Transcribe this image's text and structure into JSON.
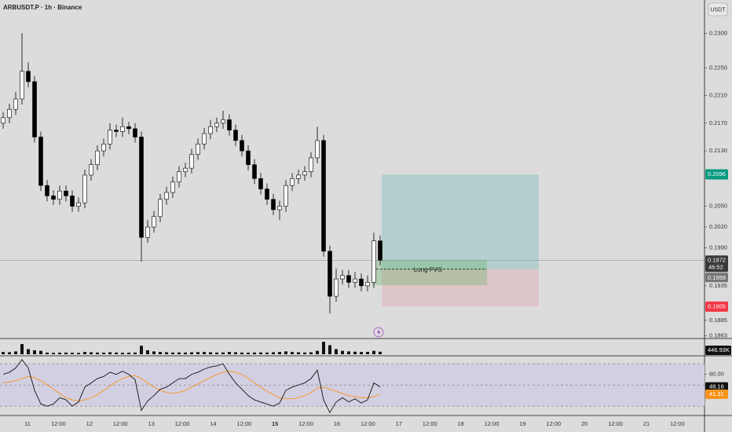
{
  "header": {
    "title": "ARBUSDT.P · 1h · Binance",
    "currency": "USDT"
  },
  "time_axis": {
    "labels": [
      "11",
      "12:00",
      "12",
      "12:00",
      "13",
      "12:00",
      "14",
      "12:00",
      "15",
      "12:00",
      "16",
      "12:00",
      "17",
      "12:00",
      "18",
      "12:00",
      "19",
      "12:00",
      "20",
      "12:00",
      "21",
      "12:00"
    ]
  },
  "chart_data": [
    {
      "type": "candlestick",
      "open": [
        0.217,
        0.2178,
        0.219,
        0.2205,
        0.2245,
        0.223,
        0.215,
        0.208,
        0.2065,
        0.206,
        0.2072,
        0.2065,
        0.205,
        0.2055,
        0.2095,
        0.211,
        0.213,
        0.214,
        0.216,
        0.2158,
        0.2165,
        0.2162,
        0.215,
        0.2005,
        0.202,
        0.2035,
        0.206,
        0.207,
        0.2085,
        0.21,
        0.2105,
        0.2125,
        0.214,
        0.2155,
        0.2165,
        0.217,
        0.2175,
        0.216,
        0.2145,
        0.213,
        0.211,
        0.209,
        0.2075,
        0.206,
        0.2045,
        0.205,
        0.208,
        0.209,
        0.2095,
        0.21,
        0.212,
        0.2145,
        0.1985,
        0.192,
        0.1945,
        0.195,
        0.194,
        0.1945,
        0.1935,
        0.194,
        0.2
      ],
      "high": [
        0.2186,
        0.2198,
        0.2215,
        0.23,
        0.2258,
        0.2238,
        0.2158,
        0.2088,
        0.2073,
        0.208,
        0.208,
        0.2073,
        0.2063,
        0.2103,
        0.2118,
        0.2138,
        0.2148,
        0.217,
        0.2168,
        0.2178,
        0.2172,
        0.217,
        0.2158,
        0.203,
        0.2043,
        0.2068,
        0.2078,
        0.2093,
        0.2108,
        0.2113,
        0.2133,
        0.2148,
        0.2163,
        0.2175,
        0.2178,
        0.2188,
        0.2183,
        0.2168,
        0.2153,
        0.2138,
        0.2118,
        0.2098,
        0.2083,
        0.2068,
        0.2058,
        0.2088,
        0.2098,
        0.2103,
        0.2108,
        0.2128,
        0.2165,
        0.2153,
        0.1993,
        0.196,
        0.1958,
        0.1958,
        0.1955,
        0.1953,
        0.195,
        0.2012,
        0.2008
      ],
      "low": [
        0.2162,
        0.217,
        0.2182,
        0.2197,
        0.2222,
        0.2142,
        0.2072,
        0.2057,
        0.2052,
        0.2052,
        0.2057,
        0.2042,
        0.2042,
        0.2047,
        0.2087,
        0.2102,
        0.2122,
        0.2132,
        0.215,
        0.215,
        0.2154,
        0.2142,
        0.197,
        0.1997,
        0.2012,
        0.2027,
        0.2052,
        0.2062,
        0.2077,
        0.2092,
        0.2097,
        0.2117,
        0.2132,
        0.2147,
        0.2157,
        0.2162,
        0.2152,
        0.2137,
        0.2122,
        0.2102,
        0.2082,
        0.2067,
        0.2052,
        0.2037,
        0.203,
        0.2042,
        0.2072,
        0.2082,
        0.2087,
        0.2092,
        0.2112,
        0.1977,
        0.1895,
        0.1912,
        0.1937,
        0.1932,
        0.1932,
        0.1927,
        0.1927,
        0.1932,
        0.1965
      ],
      "close": [
        0.2178,
        0.219,
        0.2205,
        0.2245,
        0.223,
        0.215,
        0.208,
        0.2065,
        0.206,
        0.2072,
        0.2065,
        0.205,
        0.2055,
        0.2095,
        0.211,
        0.213,
        0.214,
        0.216,
        0.2158,
        0.2165,
        0.2162,
        0.215,
        0.2005,
        0.202,
        0.2035,
        0.206,
        0.207,
        0.2085,
        0.21,
        0.2105,
        0.2125,
        0.214,
        0.2155,
        0.2165,
        0.217,
        0.2175,
        0.216,
        0.2145,
        0.213,
        0.211,
        0.209,
        0.2075,
        0.206,
        0.2045,
        0.205,
        0.208,
        0.209,
        0.2095,
        0.21,
        0.212,
        0.2145,
        0.1985,
        0.192,
        0.1945,
        0.195,
        0.194,
        0.1945,
        0.1935,
        0.194,
        0.2,
        0.1972
      ],
      "up_color": "#ffffff",
      "down_color": "#000000",
      "ylim": [
        0.186,
        0.2348
      ],
      "yticks": [
        {
          "value": 0.23,
          "label": "0.2300"
        },
        {
          "value": 0.225,
          "label": "0.2250"
        },
        {
          "value": 0.221,
          "label": "0.2210"
        },
        {
          "value": 0.217,
          "label": "0.2170"
        },
        {
          "value": 0.213,
          "label": "0.2130"
        },
        {
          "value": 0.205,
          "label": "0.2050"
        },
        {
          "value": 0.202,
          "label": "0.2020"
        },
        {
          "value": 0.199,
          "label": "0.1990"
        },
        0.1935,
        0.1885,
        0.1863
      ],
      "current_price": 0.1972,
      "countdown": "46:52",
      "position": {
        "entry": 0.1959,
        "take_profit": 0.2096,
        "stop_loss": 0.1905
      },
      "fvg": {
        "label": "Long FVG",
        "top": 0.1972,
        "bottom": 0.1936
      }
    },
    {
      "type": "bar",
      "name": "volume",
      "color": "#111111",
      "values": [
        400,
        350,
        500,
        1800,
        900,
        700,
        600,
        300,
        250,
        280,
        300,
        260,
        240,
        400,
        350,
        300,
        280,
        350,
        300,
        260,
        280,
        300,
        1500,
        700,
        500,
        400,
        350,
        300,
        320,
        300,
        350,
        380,
        400,
        350,
        300,
        320,
        400,
        350,
        300,
        280,
        300,
        320,
        300,
        350,
        400,
        500,
        400,
        350,
        300,
        350,
        600,
        2200,
        1600,
        900,
        600,
        500,
        450,
        400,
        420,
        600,
        446.93
      ],
      "ylim": [
        0,
        2500
      ],
      "last_marker": {
        "value": 446.93,
        "label": "446.93K"
      }
    },
    {
      "type": "line",
      "name": "rsi",
      "series": [
        {
          "color": "#111111",
          "values": [
            60,
            62,
            66,
            74,
            66,
            45,
            32,
            30,
            32,
            38,
            36,
            30,
            34,
            48,
            52,
            56,
            58,
            62,
            60,
            63,
            60,
            55,
            26,
            35,
            40,
            46,
            48,
            52,
            56,
            56,
            60,
            62,
            65,
            67,
            68,
            70,
            60,
            52,
            46,
            40,
            36,
            34,
            32,
            30,
            33,
            45,
            48,
            50,
            52,
            56,
            64,
            36,
            24,
            34,
            38,
            34,
            37,
            33,
            36,
            52,
            48.16
          ],
          "value_labels": "48.16"
        },
        {
          "color": "#f7931a",
          "values": [
            52,
            53,
            54,
            56,
            58,
            57,
            54,
            50,
            46,
            42,
            38,
            36,
            35,
            36,
            38,
            41,
            45,
            49,
            53,
            56,
            58,
            59,
            56,
            52,
            48,
            45,
            43,
            42,
            43,
            45,
            48,
            51,
            54,
            57,
            60,
            62,
            63,
            62,
            60,
            56,
            52,
            48,
            44,
            41,
            38,
            37,
            37,
            38,
            40,
            43,
            47,
            48,
            46,
            44,
            42,
            40,
            39,
            38,
            38,
            39,
            41.31
          ],
          "value_labels": "41.31"
        }
      ],
      "ylim": [
        22,
        76
      ],
      "yticks": [
        {
          "value": 60,
          "label": "60.00"
        }
      ],
      "levels": [
        70,
        50,
        30
      ],
      "band_color": "#d3cfe2"
    }
  ]
}
